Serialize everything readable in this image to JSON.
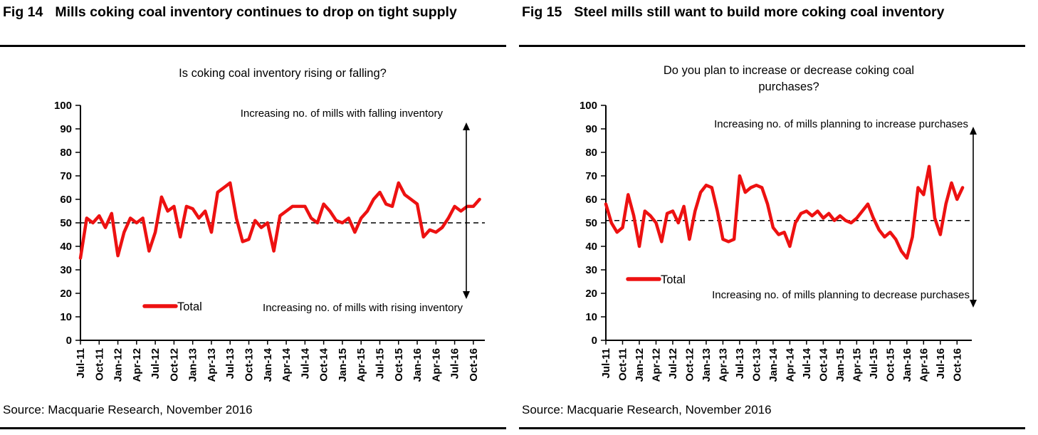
{
  "colors": {
    "line_red": "#ed1111",
    "axis": "#000000",
    "background": "#ffffff"
  },
  "panels": [
    {
      "fig_label": "Fig 14",
      "title": "Mills coking coal inventory continues to drop on tight supply",
      "source": "Source: Macquarie Research, November 2016",
      "chart_data": {
        "type": "line",
        "title_lines": [
          "Is coking coal inventory rising or falling?"
        ],
        "x_start": "Jul-11",
        "x_end": "Nov-16",
        "x_frequency": "monthly",
        "x_tick_labels": [
          "Jul-11",
          "Oct-11",
          "Jan-12",
          "Apr-12",
          "Jul-12",
          "Oct-12",
          "Jan-13",
          "Apr-13",
          "Jul-13",
          "Oct-13",
          "Jan-14",
          "Apr-14",
          "Jul-14",
          "Oct-14",
          "Jan-15",
          "Apr-15",
          "Jul-15",
          "Oct-15",
          "Jan-16",
          "Apr-16",
          "Jul-16",
          "Oct-16"
        ],
        "ylim": [
          0,
          100
        ],
        "ytick_step": 10,
        "grid": false,
        "reference_line_y": 50,
        "annotation_top": "Increasing no. of mills with falling inventory",
        "annotation_bottom": "Increasing no. of mills with rising inventory",
        "legend_position": "inside-bottom-left",
        "series": [
          {
            "name": "Total",
            "color": "#ed1111",
            "values": [
              35,
              52,
              50,
              53,
              48,
              54,
              36,
              46,
              52,
              50,
              52,
              38,
              46,
              61,
              55,
              57,
              44,
              57,
              56,
              52,
              55,
              46,
              63,
              65,
              67,
              52,
              42,
              43,
              51,
              48,
              50,
              38,
              53,
              55,
              57,
              57,
              57,
              52,
              50,
              58,
              55,
              51,
              50,
              52,
              46,
              52,
              55,
              60,
              63,
              58,
              57,
              67,
              62,
              60,
              58,
              44,
              47,
              46,
              48,
              52,
              57,
              55,
              57,
              57,
              60
            ]
          }
        ]
      }
    },
    {
      "fig_label": "Fig 15",
      "title": "Steel mills still want to build more coking coal inventory",
      "source": "Source: Macquarie Research, November 2016",
      "chart_data": {
        "type": "line",
        "title_lines": [
          "Do you plan to increase or decrease coking coal",
          "purchases?"
        ],
        "x_start": "Jul-11",
        "x_end": "Nov-16",
        "x_frequency": "monthly",
        "x_tick_labels": [
          "Jul-11",
          "Oct-11",
          "Jan-12",
          "Apr-12",
          "Jul-12",
          "Oct-12",
          "Jan-13",
          "Apr-13",
          "Jul-13",
          "Oct-13",
          "Jan-14",
          "Apr-14",
          "Jul-14",
          "Oct-14",
          "Jan-15",
          "Apr-15",
          "Jul-15",
          "Oct-15",
          "Jan-16",
          "Apr-16",
          "Jul-16",
          "Oct-16"
        ],
        "ylim": [
          0,
          100
        ],
        "ytick_step": 10,
        "grid": false,
        "reference_line_y": 51,
        "annotation_top": "Increasing no. of mills planning to increase purchases",
        "annotation_bottom": "Increasing no. of mills planning to decrease purchases",
        "legend_position": "inside-bottom-left",
        "series": [
          {
            "name": "Total",
            "color": "#ed1111",
            "values": [
              58,
              50,
              46,
              48,
              62,
              53,
              40,
              55,
              53,
              50,
              42,
              54,
              55,
              50,
              57,
              43,
              55,
              63,
              66,
              65,
              55,
              43,
              42,
              43,
              70,
              63,
              65,
              66,
              65,
              58,
              48,
              45,
              46,
              40,
              50,
              54,
              55,
              53,
              55,
              52,
              54,
              51,
              53,
              51,
              50,
              52,
              55,
              58,
              52,
              47,
              44,
              46,
              43,
              38,
              35,
              44,
              65,
              62,
              74,
              52,
              45,
              58,
              67,
              60,
              65
            ]
          }
        ]
      }
    }
  ]
}
